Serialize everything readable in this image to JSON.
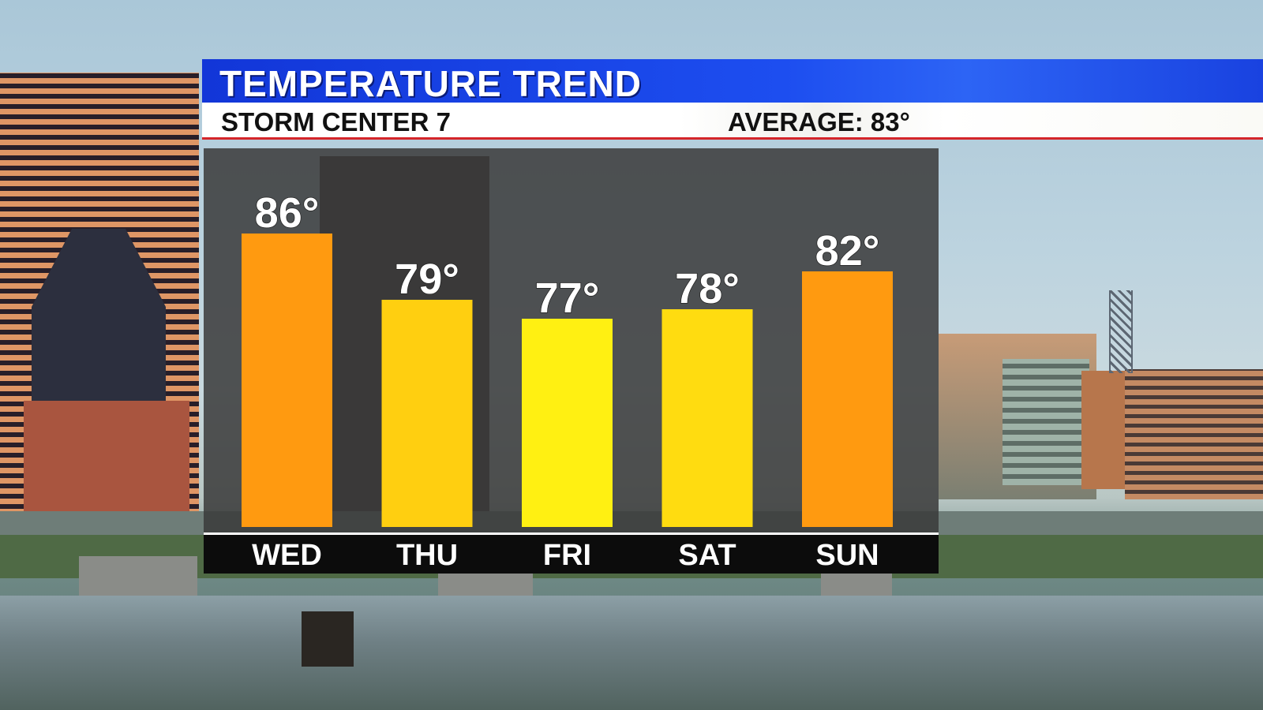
{
  "header": {
    "title": "TEMPERATURE TREND",
    "station": "STORM CENTER 7",
    "average": "AVERAGE: 83°"
  },
  "colors": {
    "title_band": "#1d4ef0",
    "accent_line": "#d4252a",
    "warm_bar": "#ff9a10",
    "mild_bar": "#ffcf10",
    "cool_bar": "#fff012"
  },
  "chart_data": {
    "type": "bar",
    "title": "TEMPERATURE TREND",
    "categories": [
      "WED",
      "THU",
      "FRI",
      "SAT",
      "SUN"
    ],
    "values": [
      86,
      79,
      77,
      78,
      82
    ],
    "value_labels": [
      "86°",
      "79°",
      "77°",
      "78°",
      "82°"
    ],
    "bar_colors": [
      "#ff9a10",
      "#ffcf10",
      "#fff012",
      "#ffdc10",
      "#ff9a10"
    ],
    "ylim": [
      55,
      90
    ],
    "grid": false,
    "legend": "none"
  }
}
